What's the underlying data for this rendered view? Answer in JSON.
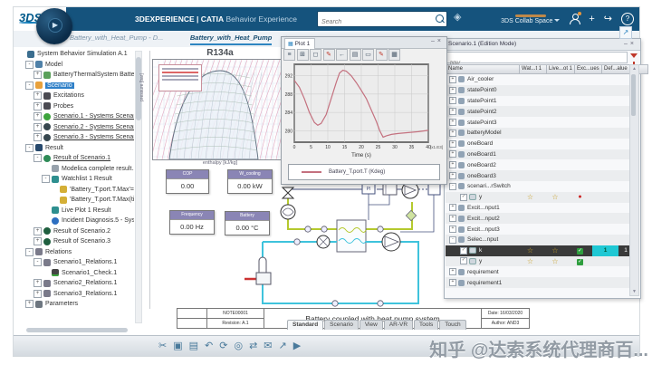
{
  "topbar": {
    "logo": "3DS",
    "brand": "3DEXPERIENCE | CATIA",
    "app_name": "Behavior Experience",
    "search_placeholder": "Search",
    "collab_space": "3DS Collab Space",
    "add_label": "+",
    "help_label": "?"
  },
  "doc_tabs": [
    {
      "label": "Battery_with_Heat_Pump - D...",
      "active": false
    },
    {
      "label": "Battery_with_Heat_Pump",
      "active": true
    },
    {
      "label": "+",
      "active": false,
      "new_tab": true
    }
  ],
  "tree": {
    "items": [
      {
        "t": "System Behavior Simulation A.1",
        "d": 0,
        "i": "sim"
      },
      {
        "t": "Model",
        "d": 1,
        "i": "model",
        "x": "-"
      },
      {
        "t": "BatteryThermalSystem BatteryThermal...",
        "d": 2,
        "i": "battery",
        "x": "+"
      },
      {
        "t": "Scenario",
        "d": 1,
        "i": "scenario",
        "x": "-",
        "sel": true
      },
      {
        "t": "Excitations",
        "d": 2,
        "i": "dark",
        "x": "+"
      },
      {
        "t": "Probes",
        "d": 2,
        "i": "dark",
        "x": "+"
      },
      {
        "t": "Scenario.1 - Systems Scenario",
        "d": 2,
        "i": "scen-green",
        "x": "+",
        "u": true,
        "c": true
      },
      {
        "t": "Scenario.2 - Systems Scenario",
        "d": 2,
        "i": "scen-dark",
        "x": "+",
        "u": true,
        "c": true
      },
      {
        "t": "Scenario.3 - Systems Scenario",
        "d": 2,
        "i": "scen-dark",
        "x": "+",
        "u": true,
        "c": true
      },
      {
        "t": "Result",
        "d": 1,
        "i": "result",
        "x": "-"
      },
      {
        "t": "Result of Scenario.1",
        "d": 2,
        "i": "result-green",
        "x": "-",
        "u": true,
        "c": true
      },
      {
        "t": "Modelica complete result.1",
        "d": 3,
        "i": "modelica"
      },
      {
        "t": "Watchlist 1 Result",
        "d": 3,
        "i": "watchlist",
        "x": "-"
      },
      {
        "t": "'Battery_T.port.T.Max'=291.8",
        "d": 4,
        "i": "watch"
      },
      {
        "t": "'Battery_T.port.T.Max(time'=",
        "d": 4,
        "i": "watch"
      },
      {
        "t": "Live Plot 1 Result",
        "d": 3,
        "i": "watchlist"
      },
      {
        "t": "Incident Diagnosis.5 - Systems ...",
        "d": 3,
        "i": "incident",
        "c": true
      },
      {
        "t": "Result of Scenario.2",
        "d": 2,
        "i": "result-dark",
        "x": "+",
        "c": true
      },
      {
        "t": "Result of Scenario.3",
        "d": 2,
        "i": "result-dark",
        "x": "+",
        "c": true
      },
      {
        "t": "Relations",
        "d": 1,
        "i": "relations",
        "x": "-"
      },
      {
        "t": "Scenario1_Relations.1",
        "d": 2,
        "i": "relations",
        "x": "-"
      },
      {
        "t": "Scenario1_Check.1",
        "d": 3,
        "i": "check"
      },
      {
        "t": "Scenario2_Relations.1",
        "d": 2,
        "i": "relations",
        "x": "+"
      },
      {
        "t": "Scenario3_Relations.1",
        "d": 2,
        "i": "relations",
        "x": "+"
      },
      {
        "t": "Parameters",
        "d": 1,
        "i": "parameters",
        "x": "+"
      }
    ]
  },
  "ph_chart": {
    "title": "R134a",
    "xlabel": "enthalpy [kJ/kg]",
    "ylabel": "pressure [bar]"
  },
  "plot_panel": {
    "tab": "Plot 1",
    "minimize": "–",
    "close": "×",
    "toolbar_icons": [
      {
        "name": "list-icon",
        "g": "≡"
      },
      {
        "name": "fit-view-icon",
        "g": "⊞"
      },
      {
        "name": "zoom-select-icon",
        "g": "◻"
      },
      {
        "name": "annotate-disabled-icon",
        "g": "✎",
        "red": true
      },
      {
        "name": "back-arrow-icon",
        "g": "←"
      },
      {
        "name": "export-icon",
        "g": "▤"
      },
      {
        "name": "layout-icon",
        "g": "▭"
      },
      {
        "name": "annotate-red-icon",
        "g": "✎",
        "red": true
      },
      {
        "name": "chart-settings-icon",
        "g": "▦"
      }
    ],
    "legend_label": "Battery_T.port.T (Kdeg)"
  },
  "chart_data": {
    "type": "line",
    "title": "Plot 1",
    "xlabel": "Time (s)",
    "ylabel": "",
    "x_multiplier_note": "[x1.E3]",
    "xlim": [
      0,
      40
    ],
    "ylim": [
      277.5,
      294.5
    ],
    "xticks": [
      0,
      5,
      10,
      15,
      20,
      25,
      30,
      35,
      40
    ],
    "yticks": [
      280,
      284,
      288,
      292
    ],
    "grid": true,
    "legend_position": "bottom",
    "series": [
      {
        "name": "Battery_T.port.T (Kdeg)",
        "color": "#c4717f",
        "x": [
          0,
          1.5,
          3,
          4.5,
          6,
          7,
          8,
          9.5,
          11,
          12.5,
          13.5,
          14.5,
          15.5,
          17,
          18.5,
          20,
          21.5,
          23,
          24.5,
          25.5,
          26.5,
          27.5,
          29,
          31,
          34,
          37,
          40
        ],
        "y": [
          291,
          289.5,
          287,
          284,
          281.8,
          281.2,
          281.6,
          283.5,
          287,
          290.5,
          292.6,
          293.2,
          293,
          292,
          290.5,
          288.8,
          287,
          284.5,
          282,
          280,
          278.6,
          278.9,
          279.2,
          279.4,
          279.6,
          279.8,
          280.1
        ]
      }
    ]
  },
  "gauges": [
    {
      "label": "COP",
      "value": "0.00"
    },
    {
      "label": "W_cooling",
      "value": "0.00 kW"
    },
    {
      "label": "Frequency",
      "value": "0.00 Hz"
    },
    {
      "label": "Battery",
      "value": "0.00 °C"
    }
  ],
  "title_block": {
    "note": "NOTE00001",
    "revision": "Revision: A.1",
    "title": "Battery coupled with heat pump system",
    "date": "Date: 16/03/2020",
    "author": "Author: AND3"
  },
  "ribbon_tabs": [
    {
      "label": "Standard",
      "active": true
    },
    {
      "label": "Scenario",
      "active": false
    },
    {
      "label": "View",
      "active": false
    },
    {
      "label": "AR-VR",
      "active": false
    },
    {
      "label": "Tools",
      "active": false
    },
    {
      "label": "Touch",
      "active": false
    }
  ],
  "right_panel": {
    "title": "Scenario.1 (Edition Mode)",
    "minimize": "–",
    "close": "×",
    "filter_placeholder": "filter",
    "columns": [
      "Name",
      "Wat...t 1",
      "Live...ot 1",
      "Exc...ues",
      "Def...alue",
      "U"
    ],
    "rows": [
      {
        "name": "Air_cooler"
      },
      {
        "name": "statePoint0"
      },
      {
        "name": "statePoint1"
      },
      {
        "name": "statePoint2"
      },
      {
        "name": "statePoint3"
      },
      {
        "name": "batteryModel"
      },
      {
        "name": "oneBoard"
      },
      {
        "name": "oneBoard1"
      },
      {
        "name": "oneBoard2"
      },
      {
        "name": "oneBoard3"
      },
      {
        "name": "scenari...rSwitch",
        "expanded": true
      },
      {
        "name": "y",
        "kind": "var",
        "cells": {
          "wat": "star",
          "live": "star",
          "exc": "reddot"
        }
      },
      {
        "name": "Excit...nput1"
      },
      {
        "name": "Excit...nput2"
      },
      {
        "name": "Excit...nput3"
      },
      {
        "name": "Selec...nput",
        "expanded": true
      },
      {
        "name": "k",
        "kind": "var",
        "sel": true,
        "cells": {
          "wat": "star",
          "live": "star",
          "exc": "check",
          "def": "cyan:1",
          "u": "1"
        }
      },
      {
        "name": "y",
        "kind": "var",
        "cells": {
          "wat": "star",
          "live": "star",
          "exc": "check"
        }
      },
      {
        "name": "requirement"
      },
      {
        "name": "requirement1"
      }
    ]
  },
  "bottom_toolbar": {
    "icons": [
      {
        "name": "cut-icon",
        "g": "✂"
      },
      {
        "name": "copy-icon",
        "g": "▣"
      },
      {
        "name": "paste-icon",
        "g": "▤"
      },
      {
        "name": "undo-icon",
        "g": "↶"
      },
      {
        "name": "update-icon",
        "g": "⟳"
      },
      {
        "name": "compass-icon",
        "g": "◎"
      },
      {
        "name": "exchange-icon",
        "g": "⇄"
      },
      {
        "name": "message-icon",
        "g": "✉"
      },
      {
        "name": "pointer-add-icon",
        "g": "↗"
      },
      {
        "name": "play-icon",
        "g": "▶"
      }
    ]
  },
  "watermark": "知乎 @达索系统代理商百...",
  "colors": {
    "topbar": "#15537d",
    "accent": "#2e86c1",
    "tree_selection": "#2f80c8",
    "plot_line": "#c4717f",
    "gauge_header": "#8a85b5",
    "cyan_cell": "#1fc8d4",
    "refrigerant_loop": "#b5c92e",
    "coolant_loop": "#3fc3dc",
    "control_line": "#46527e",
    "heat_source_line": "#cc3333"
  }
}
